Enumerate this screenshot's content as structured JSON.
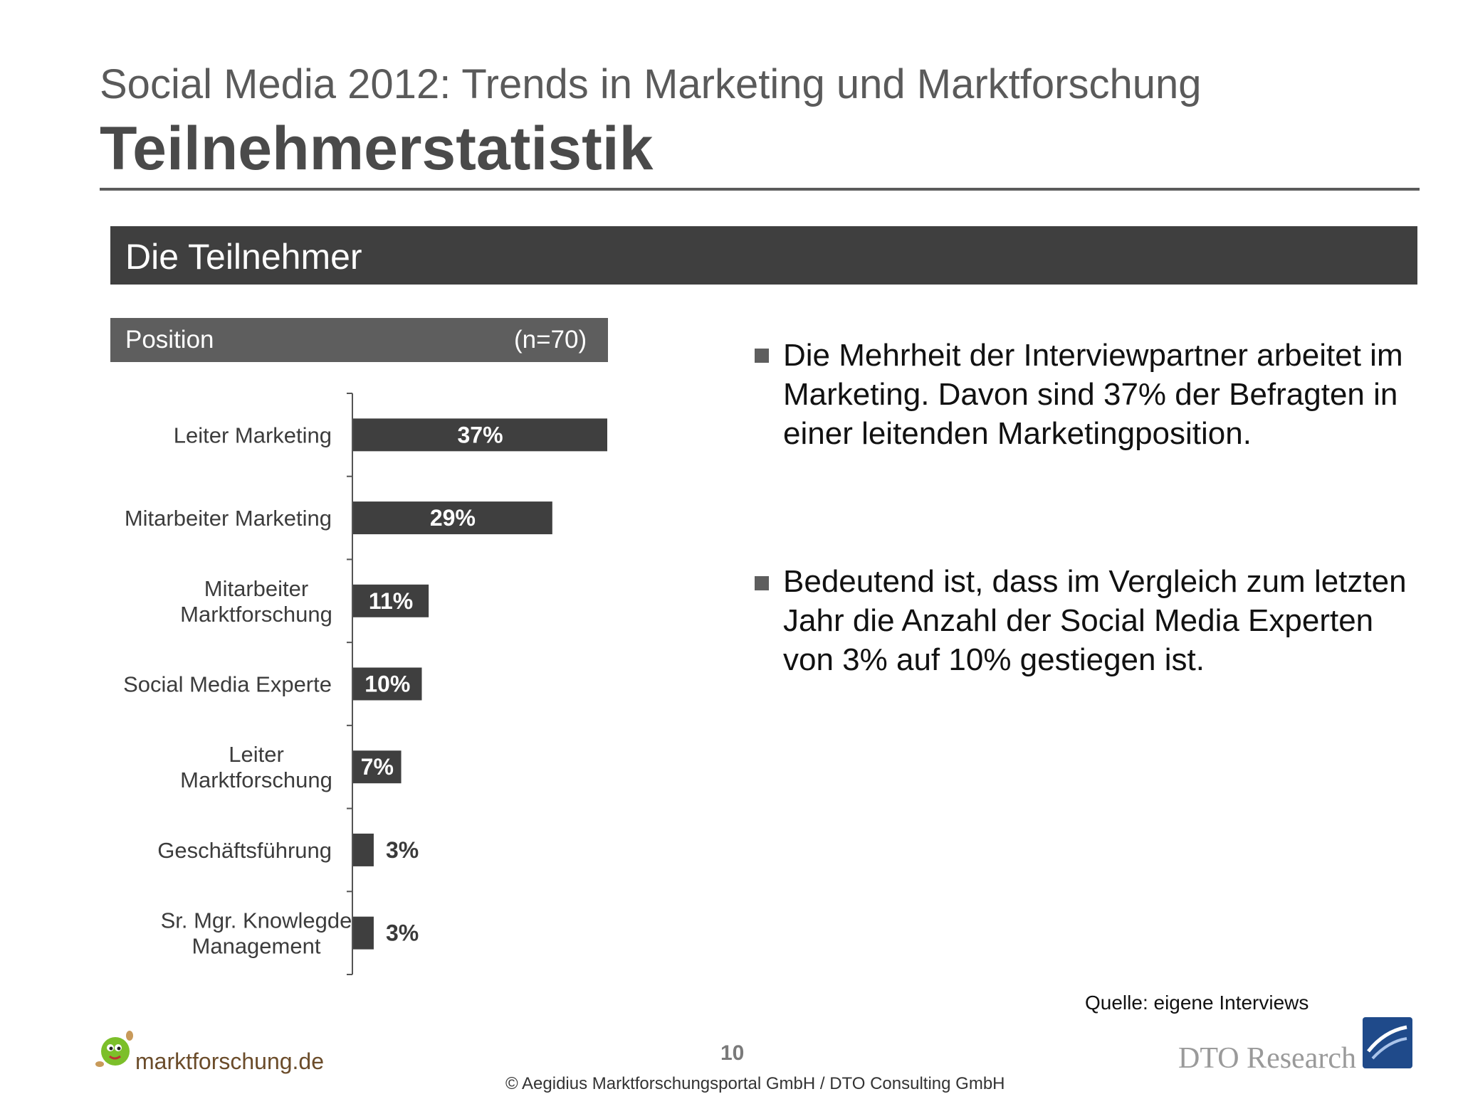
{
  "header": {
    "subtitle": "Social Media 2012: Trends in Marketing und Marktforschung",
    "title": "Teilnehmerstatistik"
  },
  "section": {
    "title": "Die Teilnehmer"
  },
  "chart_header": {
    "label": "Position",
    "n": "(n=70)"
  },
  "chart_data": {
    "type": "bar",
    "orientation": "horizontal",
    "categories": [
      [
        "Leiter Marketing"
      ],
      [
        "Mitarbeiter Marketing"
      ],
      [
        "Mitarbeiter",
        "Marktforschung"
      ],
      [
        "Social Media Experte"
      ],
      [
        "Leiter",
        "Marktforschung"
      ],
      [
        "Geschäftsführung"
      ],
      [
        "Sr. Mgr. Knowlegde",
        "Management"
      ]
    ],
    "values": [
      37,
      29,
      11,
      10,
      7,
      3,
      3
    ],
    "value_labels": [
      "37%",
      "29%",
      "11%",
      "10%",
      "7%",
      "3%",
      "3%"
    ],
    "xlim": [
      0,
      37
    ],
    "color": "#3f3f3f",
    "grid": false,
    "legend": "none"
  },
  "bullets": [
    "Die Mehrheit der Interviewpartner arbeitet im Marketing. Davon sind 37% der Befragten in einer leitenden Marketingposition.",
    "Bedeutend ist, dass im Vergleich zum letzten Jahr die Anzahl der Social Media Experten von 3% auf 10% gestiegen ist."
  ],
  "footer": {
    "source": "Quelle: eigene Interviews",
    "page_number": "10",
    "copyright": "© Aegidius Marktforschungsportal GmbH / DTO Consulting GmbH",
    "logo_left": "marktforschung.de",
    "logo_right": "DTO Research"
  }
}
